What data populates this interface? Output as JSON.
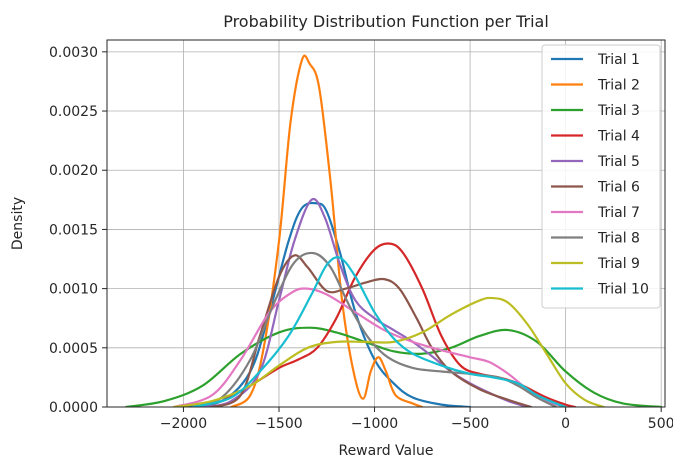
{
  "chart_data": {
    "type": "line",
    "title": "Probability Distribution Function per Trial",
    "xlabel": "Reward Value",
    "ylabel": "Density",
    "xlim": [
      -2400,
      520
    ],
    "ylim": [
      0,
      0.0031
    ],
    "xticks": [
      -2000,
      -1500,
      -1000,
      -500,
      0,
      500
    ],
    "xtick_labels": [
      "−2000",
      "−1500",
      "−1000",
      "−500",
      "0",
      "500"
    ],
    "yticks": [
      0,
      0.0005,
      0.001,
      0.0015,
      0.002,
      0.0025,
      0.003
    ],
    "ytick_labels": [
      "0.0000",
      "0.0005",
      "0.0010",
      "0.0015",
      "0.0020",
      "0.0025",
      "0.0030"
    ],
    "grid": true,
    "legend": "top-right",
    "series": [
      {
        "name": "Trial 1",
        "color": "#1f77b4",
        "points": [
          [
            -2000,
            0
          ],
          [
            -1800,
            5e-05
          ],
          [
            -1650,
            0.0003
          ],
          [
            -1550,
            0.0008
          ],
          [
            -1450,
            0.0014
          ],
          [
            -1380,
            0.00168
          ],
          [
            -1300,
            0.00172
          ],
          [
            -1250,
            0.00165
          ],
          [
            -1180,
            0.0013
          ],
          [
            -1100,
            0.0008
          ],
          [
            -1000,
            0.0004
          ],
          [
            -900,
            0.0002
          ],
          [
            -800,
            8e-05
          ],
          [
            -650,
            2e-05
          ],
          [
            -500,
            0
          ]
        ]
      },
      {
        "name": "Trial 2",
        "color": "#ff7f0e",
        "points": [
          [
            -1750,
            0
          ],
          [
            -1650,
            0.0001
          ],
          [
            -1580,
            0.0005
          ],
          [
            -1500,
            0.0014
          ],
          [
            -1440,
            0.0024
          ],
          [
            -1380,
            0.00293
          ],
          [
            -1340,
            0.0029
          ],
          [
            -1290,
            0.0027
          ],
          [
            -1230,
            0.0019
          ],
          [
            -1170,
            0.0009
          ],
          [
            -1110,
            0.0003
          ],
          [
            -1060,
            7e-05
          ],
          [
            -1020,
            0.0003
          ],
          [
            -980,
            0.00042
          ],
          [
            -940,
            0.0003
          ],
          [
            -890,
            0.0001
          ],
          [
            -800,
            3e-05
          ],
          [
            -750,
            0
          ]
        ]
      },
      {
        "name": "Trial 3",
        "color": "#2ca02c",
        "points": [
          [
            -2300,
            0
          ],
          [
            -2100,
            5e-05
          ],
          [
            -1900,
            0.00018
          ],
          [
            -1700,
            0.00045
          ],
          [
            -1500,
            0.00063
          ],
          [
            -1340,
            0.00067
          ],
          [
            -1200,
            0.00063
          ],
          [
            -1050,
            0.00055
          ],
          [
            -900,
            0.00047
          ],
          [
            -750,
            0.00045
          ],
          [
            -600,
            0.0005
          ],
          [
            -450,
            0.0006
          ],
          [
            -300,
            0.00065
          ],
          [
            -150,
            0.00055
          ],
          [
            0,
            0.0003
          ],
          [
            150,
            0.00012
          ],
          [
            300,
            3e-05
          ],
          [
            500,
            0
          ]
        ]
      },
      {
        "name": "Trial 4",
        "color": "#d62728",
        "points": [
          [
            -1950,
            0
          ],
          [
            -1800,
            5e-05
          ],
          [
            -1650,
            0.00018
          ],
          [
            -1500,
            0.00033
          ],
          [
            -1400,
            0.0004
          ],
          [
            -1300,
            0.0005
          ],
          [
            -1200,
            0.00075
          ],
          [
            -1100,
            0.0011
          ],
          [
            -1000,
            0.00133
          ],
          [
            -920,
            0.00138
          ],
          [
            -850,
            0.0013
          ],
          [
            -750,
            0.001
          ],
          [
            -650,
            0.0006
          ],
          [
            -550,
            0.00035
          ],
          [
            -450,
            0.00028
          ],
          [
            -350,
            0.00025
          ],
          [
            -250,
            0.0002
          ],
          [
            -100,
            8e-05
          ],
          [
            0,
            2e-05
          ],
          [
            50,
            0
          ]
        ]
      },
      {
        "name": "Trial 5",
        "color": "#9467bd",
        "points": [
          [
            -1900,
            0
          ],
          [
            -1750,
            5e-05
          ],
          [
            -1600,
            0.0003
          ],
          [
            -1500,
            0.0009
          ],
          [
            -1420,
            0.0014
          ],
          [
            -1330,
            0.00175
          ],
          [
            -1260,
            0.0016
          ],
          [
            -1180,
            0.0012
          ],
          [
            -1100,
            0.0009
          ],
          [
            -1000,
            0.00075
          ],
          [
            -900,
            0.00065
          ],
          [
            -800,
            0.00055
          ],
          [
            -700,
            0.00043
          ],
          [
            -600,
            0.0003
          ],
          [
            -500,
            0.0002
          ],
          [
            -400,
            0.00012
          ],
          [
            -300,
            5e-05
          ],
          [
            -200,
            0
          ]
        ]
      },
      {
        "name": "Trial 6",
        "color": "#8c564b",
        "points": [
          [
            -1850,
            0
          ],
          [
            -1700,
            0.0001
          ],
          [
            -1600,
            0.0006
          ],
          [
            -1500,
            0.0011
          ],
          [
            -1420,
            0.00128
          ],
          [
            -1350,
            0.00118
          ],
          [
            -1250,
            0.00098
          ],
          [
            -1150,
            0.001
          ],
          [
            -1050,
            0.00105
          ],
          [
            -950,
            0.00108
          ],
          [
            -870,
            0.001
          ],
          [
            -780,
            0.00075
          ],
          [
            -700,
            0.0005
          ],
          [
            -600,
            0.0003
          ],
          [
            -450,
            0.00015
          ],
          [
            -300,
            6e-05
          ],
          [
            -180,
            0
          ]
        ]
      },
      {
        "name": "Trial 7",
        "color": "#e377c2",
        "points": [
          [
            -2050,
            0
          ],
          [
            -1850,
            0.0001
          ],
          [
            -1700,
            0.0004
          ],
          [
            -1550,
            0.0008
          ],
          [
            -1430,
            0.00097
          ],
          [
            -1350,
            0.001
          ],
          [
            -1250,
            0.00095
          ],
          [
            -1100,
            0.0008
          ],
          [
            -950,
            0.00065
          ],
          [
            -800,
            0.00055
          ],
          [
            -650,
            0.00048
          ],
          [
            -500,
            0.00042
          ],
          [
            -400,
            0.00038
          ],
          [
            -300,
            0.00028
          ],
          [
            -200,
            0.00015
          ],
          [
            -100,
            5e-05
          ],
          [
            0,
            0
          ]
        ]
      },
      {
        "name": "Trial 8",
        "color": "#7f7f7f",
        "points": [
          [
            -1950,
            0
          ],
          [
            -1800,
            8e-05
          ],
          [
            -1650,
            0.0004
          ],
          [
            -1520,
            0.0009
          ],
          [
            -1420,
            0.00122
          ],
          [
            -1320,
            0.0013
          ],
          [
            -1230,
            0.00118
          ],
          [
            -1130,
            0.00085
          ],
          [
            -1030,
            0.00058
          ],
          [
            -930,
            0.00042
          ],
          [
            -800,
            0.00033
          ],
          [
            -650,
            0.0003
          ],
          [
            -500,
            0.00028
          ],
          [
            -350,
            0.00025
          ],
          [
            -250,
            0.00018
          ],
          [
            -150,
            8e-05
          ],
          [
            -50,
            0
          ]
        ]
      },
      {
        "name": "Trial 9",
        "color": "#bcbd22",
        "points": [
          [
            -2050,
            0
          ],
          [
            -1850,
            5e-05
          ],
          [
            -1650,
            0.00018
          ],
          [
            -1500,
            0.00035
          ],
          [
            -1350,
            0.0005
          ],
          [
            -1200,
            0.00055
          ],
          [
            -1050,
            0.00055
          ],
          [
            -900,
            0.00055
          ],
          [
            -750,
            0.00063
          ],
          [
            -600,
            0.00078
          ],
          [
            -450,
            0.0009
          ],
          [
            -380,
            0.00092
          ],
          [
            -300,
            0.00088
          ],
          [
            -200,
            0.0007
          ],
          [
            -100,
            0.00045
          ],
          [
            0,
            0.0002
          ],
          [
            100,
            6e-05
          ],
          [
            200,
            0
          ]
        ]
      },
      {
        "name": "Trial 10",
        "color": "#17becf",
        "points": [
          [
            -1950,
            0
          ],
          [
            -1750,
            8e-05
          ],
          [
            -1600,
            0.0003
          ],
          [
            -1450,
            0.0006
          ],
          [
            -1330,
            0.00095
          ],
          [
            -1250,
            0.0012
          ],
          [
            -1180,
            0.00126
          ],
          [
            -1100,
            0.0011
          ],
          [
            -1000,
            0.0008
          ],
          [
            -900,
            0.00058
          ],
          [
            -800,
            0.00045
          ],
          [
            -650,
            0.00035
          ],
          [
            -500,
            0.00028
          ],
          [
            -380,
            0.00025
          ],
          [
            -250,
            0.0002
          ],
          [
            -150,
            0.0001
          ],
          [
            -50,
            3e-05
          ],
          [
            0,
            0
          ]
        ]
      }
    ]
  }
}
